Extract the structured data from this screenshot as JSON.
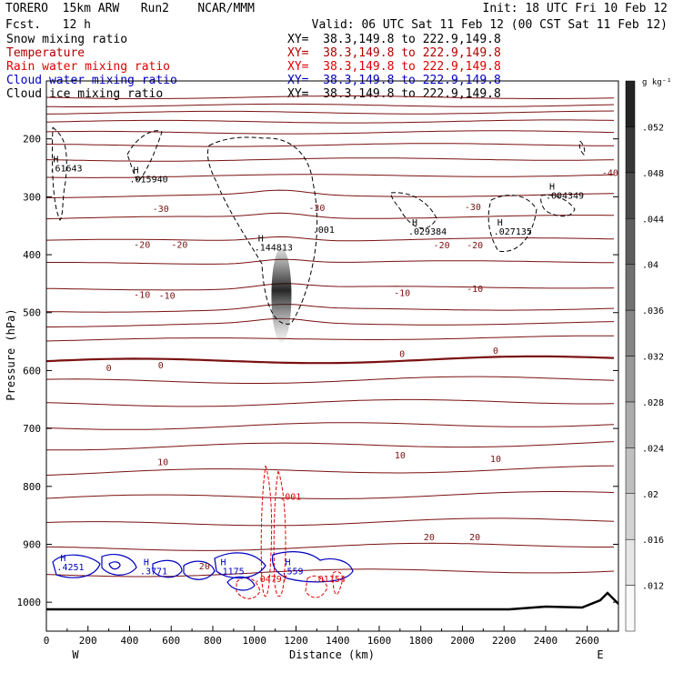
{
  "header": {
    "model_line": "TORERO  15km ARW   Run2    NCAR/MMM",
    "fcst_line": "Fcst.   12 h",
    "init_line": "Init: 18 UTC Fri 10 Feb 12",
    "valid_line": "Valid: 06 UTC Sat 11 Feb 12 (00 CST Sat 11 Feb 12)"
  },
  "fields": [
    {
      "label": "Snow mixing ratio",
      "xy": "XY=  38.3,149.8 to 222.9,149.8",
      "color": "#000000"
    },
    {
      "label": "Temperature",
      "xy": "XY=  38.3,149.8 to 222.9,149.8",
      "color": "#b00000"
    },
    {
      "label": "Rain water mixing ratio",
      "xy": "XY=  38.3,149.8 to 222.9,149.8",
      "color": "#e00000"
    },
    {
      "label": "Cloud water mixing ratio",
      "xy": "XY=  38.3,149.8 to 222.9,149.8",
      "color": "#0000c0"
    },
    {
      "label": "Cloud ice mixing ratio",
      "xy": "XY=  38.3,149.8 to 222.9,149.8",
      "color": "#000000"
    }
  ],
  "chart_data": {
    "type": "cross-section",
    "xlabel": "Distance (km)",
    "ylabel": "Pressure (hPa)",
    "xlim": [
      0,
      2750
    ],
    "ylim": [
      1050,
      100
    ],
    "x_ticks": [
      0,
      200,
      400,
      600,
      800,
      1000,
      1200,
      1400,
      1600,
      1800,
      2000,
      2200,
      2400,
      2600
    ],
    "y_ticks": [
      200,
      300,
      400,
      500,
      600,
      700,
      800,
      900,
      1000
    ],
    "x_end_labels": {
      "left": "W",
      "right": "E"
    },
    "colorbar": {
      "units": "g kg⁻¹",
      "ticks": [
        ".012",
        ".016",
        ".02",
        ".024",
        ".028",
        ".032",
        ".036",
        ".04",
        ".044",
        ".048",
        ".052"
      ],
      "values": [
        0.012,
        0.016,
        0.02,
        0.024,
        0.028,
        0.032,
        0.036,
        0.04,
        0.044,
        0.048,
        0.052
      ],
      "range": [
        0.008,
        0.056
      ]
    },
    "temperature_labels": [
      {
        "text": "0",
        "x": 300,
        "p": 595
      },
      {
        "text": "0",
        "x": 550,
        "p": 590
      },
      {
        "text": "0",
        "x": 1710,
        "p": 570
      },
      {
        "text": "0",
        "x": 2160,
        "p": 565
      },
      {
        "text": "-10",
        "x": 460,
        "p": 468
      },
      {
        "text": "-10",
        "x": 580,
        "p": 470
      },
      {
        "text": "-10",
        "x": 1710,
        "p": 465
      },
      {
        "text": "-10",
        "x": 2060,
        "p": 458
      },
      {
        "text": "-20",
        "x": 460,
        "p": 382
      },
      {
        "text": "-20",
        "x": 640,
        "p": 382
      },
      {
        "text": "-20",
        "x": 1900,
        "p": 383
      },
      {
        "text": "-20",
        "x": 2060,
        "p": 383
      },
      {
        "text": "-30",
        "x": 550,
        "p": 320
      },
      {
        "text": "-30",
        "x": 1300,
        "p": 318
      },
      {
        "text": "-30",
        "x": 2050,
        "p": 317
      },
      {
        "text": "-40",
        "x": 2710,
        "p": 258
      },
      {
        "text": "10",
        "x": 560,
        "p": 757
      },
      {
        "text": "10",
        "x": 1700,
        "p": 745
      },
      {
        "text": "10",
        "x": 2160,
        "p": 752
      },
      {
        "text": "20",
        "x": 760,
        "p": 937
      },
      {
        "text": "20",
        "x": 1840,
        "p": 887
      },
      {
        "text": "20",
        "x": 2060,
        "p": 887
      }
    ],
    "maxima": [
      {
        "mark": "H",
        "text": ".61643",
        "x": 15,
        "p": 256
      },
      {
        "mark": "H",
        "text": ".015940",
        "x": 400,
        "p": 275
      },
      {
        "mark": "H",
        "text": ".144813",
        "x": 1000,
        "p": 393
      },
      {
        "mark": "H",
        "text": ".029384",
        "x": 1740,
        "p": 365
      },
      {
        "mark": "H",
        "text": ".027135",
        "x": 2150,
        "p": 365
      },
      {
        "mark": "H",
        "text": ".004349",
        "x": 2400,
        "p": 303
      },
      {
        "mark": "",
        "text": ".001",
        "x": 1280,
        "p": 362
      },
      {
        "mark": "",
        "text": ".001",
        "x": 1120,
        "p": 823
      },
      {
        "mark": "H",
        "text": ".4251",
        "x": 50,
        "p": 945
      },
      {
        "mark": "H",
        "text": ".3771",
        "x": 450,
        "p": 952
      },
      {
        "mark": "H",
        "text": ".1175",
        "x": 820,
        "p": 952
      },
      {
        "mark": "",
        "text": ".04797",
        "x": 1000,
        "p": 965
      },
      {
        "mark": "H",
        "text": ".559",
        "x": 1130,
        "p": 952
      },
      {
        "mark": "",
        "text": ".01154",
        "x": 1280,
        "p": 965
      }
    ],
    "snow_max": {
      "x": 1130,
      "p": 470,
      "value": 0.052
    }
  }
}
